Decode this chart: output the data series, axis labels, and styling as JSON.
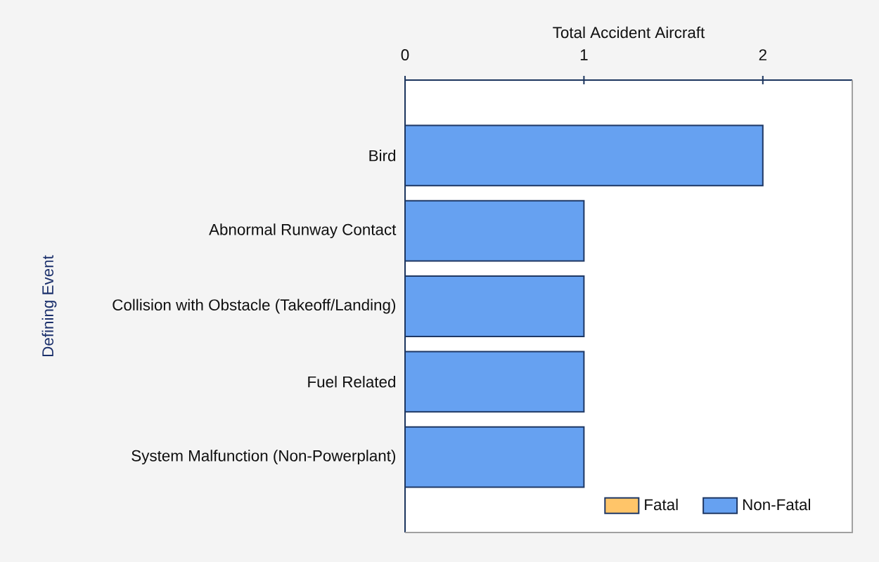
{
  "chart_data": {
    "type": "bar",
    "orientation": "horizontal",
    "stacked": true,
    "xlabel": "Total Accident Aircraft",
    "ylabel": "Defining Event",
    "categories": [
      "Bird",
      "Abnormal Runway Contact",
      "Collision with Obstacle (Takeoff/Landing)",
      "Fuel Related",
      "System Malfunction (Non-Powerplant)"
    ],
    "series": [
      {
        "name": "Fatal",
        "color": "#ffc569",
        "values": [
          0,
          0,
          0,
          0,
          0
        ]
      },
      {
        "name": "Non-Fatal",
        "color": "#66a1f1",
        "values": [
          2,
          1,
          1,
          1,
          1
        ]
      }
    ],
    "xlim": [
      0,
      2.5
    ],
    "xticks": [
      0,
      1,
      2
    ],
    "legend": "bottom right"
  }
}
